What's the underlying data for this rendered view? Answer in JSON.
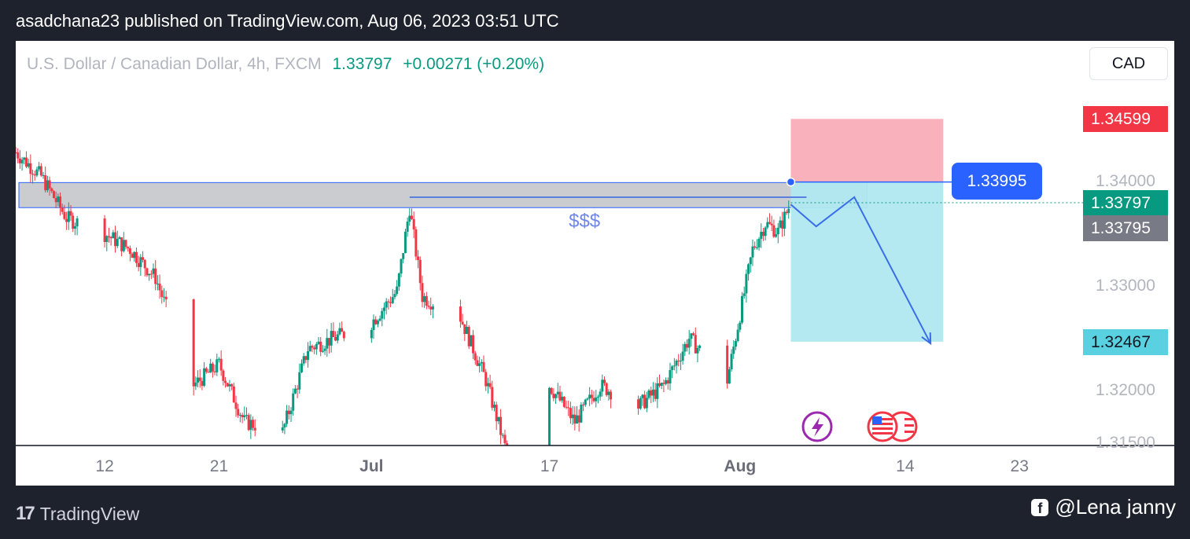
{
  "header": {
    "published_text": "asadchana23 published on TradingView.com, Aug 06, 2023 03:51 UTC"
  },
  "symbol": {
    "name": "U.S. Dollar / Canadian Dollar, 4h, FXCM",
    "price": "1.33797",
    "change": "+0.00271 (+0.20%)"
  },
  "currency": "CAD",
  "price_tags": {
    "stop": "1.34599",
    "entry": "1.33995",
    "last": "1.33797",
    "prev": "1.33795",
    "target": "1.32467"
  },
  "annotation_text": "$$$",
  "footer": {
    "brand": "TradingView",
    "author": "@Lena janny"
  },
  "colors": {
    "up": "#089981",
    "down": "#f23645",
    "stop_zone": "#f8aab4",
    "target_zone": "#b0e8f0",
    "resistance_zone": "#c8c9cd",
    "drawing_blue": "#2962ff",
    "background": "#1e222d"
  },
  "chart_data": {
    "type": "candlestick",
    "title": "U.S. Dollar / Canadian Dollar, 4h, FXCM",
    "y_ticks": [
      1.34,
      1.33,
      1.32,
      1.315
    ],
    "y_range": [
      1.315,
      1.3475
    ],
    "x_ticks": [
      {
        "label": "12",
        "date": "2023-06-12"
      },
      {
        "label": "21",
        "date": "2023-06-21"
      },
      {
        "label": "Jul",
        "date": "2023-07-03"
      },
      {
        "label": "17",
        "date": "2023-07-17"
      },
      {
        "label": "Aug",
        "date": "2023-08-01"
      },
      {
        "label": "14",
        "date": "2023-08-14"
      },
      {
        "label": "23",
        "date": "2023-08-23"
      }
    ],
    "x_range": [
      "2023-06-05",
      "2023-08-28"
    ],
    "last_close": 1.33797,
    "resistance_zone": {
      "from": 1.3375,
      "to": 1.3399,
      "start": "2023-06-05",
      "end": "2023-08-11"
    },
    "liquidity_line": {
      "level": 1.3385,
      "start": "2023-07-06",
      "end": "2023-08-05",
      "label": "$$$"
    },
    "short_position": {
      "entry": 1.33995,
      "stop": 1.34599,
      "target": 1.32467,
      "start": "2023-08-05",
      "end": "2023-08-17"
    },
    "projection_path": [
      {
        "date": "2023-08-05",
        "price": 1.3378
      },
      {
        "date": "2023-08-07",
        "price": 1.3357
      },
      {
        "date": "2023-08-10",
        "price": 1.3385
      },
      {
        "date": "2023-08-16",
        "price": 1.3245
      }
    ],
    "candles": [
      {
        "date": "2023-06-05",
        "close": 1.3428
      },
      {
        "date": "2023-06-07",
        "close": 1.3405
      },
      {
        "date": "2023-06-09",
        "close": 1.3365
      },
      {
        "date": "2023-06-12",
        "close": 1.335
      },
      {
        "date": "2023-06-14",
        "close": 1.3335
      },
      {
        "date": "2023-06-16",
        "close": 1.3308
      },
      {
        "date": "2023-06-19",
        "close": 1.3205
      },
      {
        "date": "2023-06-21",
        "close": 1.3225
      },
      {
        "date": "2023-06-23",
        "close": 1.317
      },
      {
        "date": "2023-06-26",
        "close": 1.316
      },
      {
        "date": "2023-06-28",
        "close": 1.324
      },
      {
        "date": "2023-06-30",
        "close": 1.325
      },
      {
        "date": "2023-07-03",
        "close": 1.3265
      },
      {
        "date": "2023-07-05",
        "close": 1.3295
      },
      {
        "date": "2023-07-06",
        "close": 1.3375
      },
      {
        "date": "2023-07-07",
        "close": 1.329
      },
      {
        "date": "2023-07-10",
        "close": 1.327
      },
      {
        "date": "2023-07-12",
        "close": 1.321
      },
      {
        "date": "2023-07-14",
        "close": 1.3125
      },
      {
        "date": "2023-07-17",
        "close": 1.3205
      },
      {
        "date": "2023-07-19",
        "close": 1.317
      },
      {
        "date": "2023-07-21",
        "close": 1.3205
      },
      {
        "date": "2023-07-24",
        "close": 1.3185
      },
      {
        "date": "2023-07-26",
        "close": 1.3205
      },
      {
        "date": "2023-07-28",
        "close": 1.325
      },
      {
        "date": "2023-07-31",
        "close": 1.321
      },
      {
        "date": "2023-08-02",
        "close": 1.3335
      },
      {
        "date": "2023-08-03",
        "close": 1.336
      },
      {
        "date": "2023-08-04",
        "close": 1.3352
      },
      {
        "date": "2023-08-05",
        "close": 1.33797
      }
    ]
  }
}
